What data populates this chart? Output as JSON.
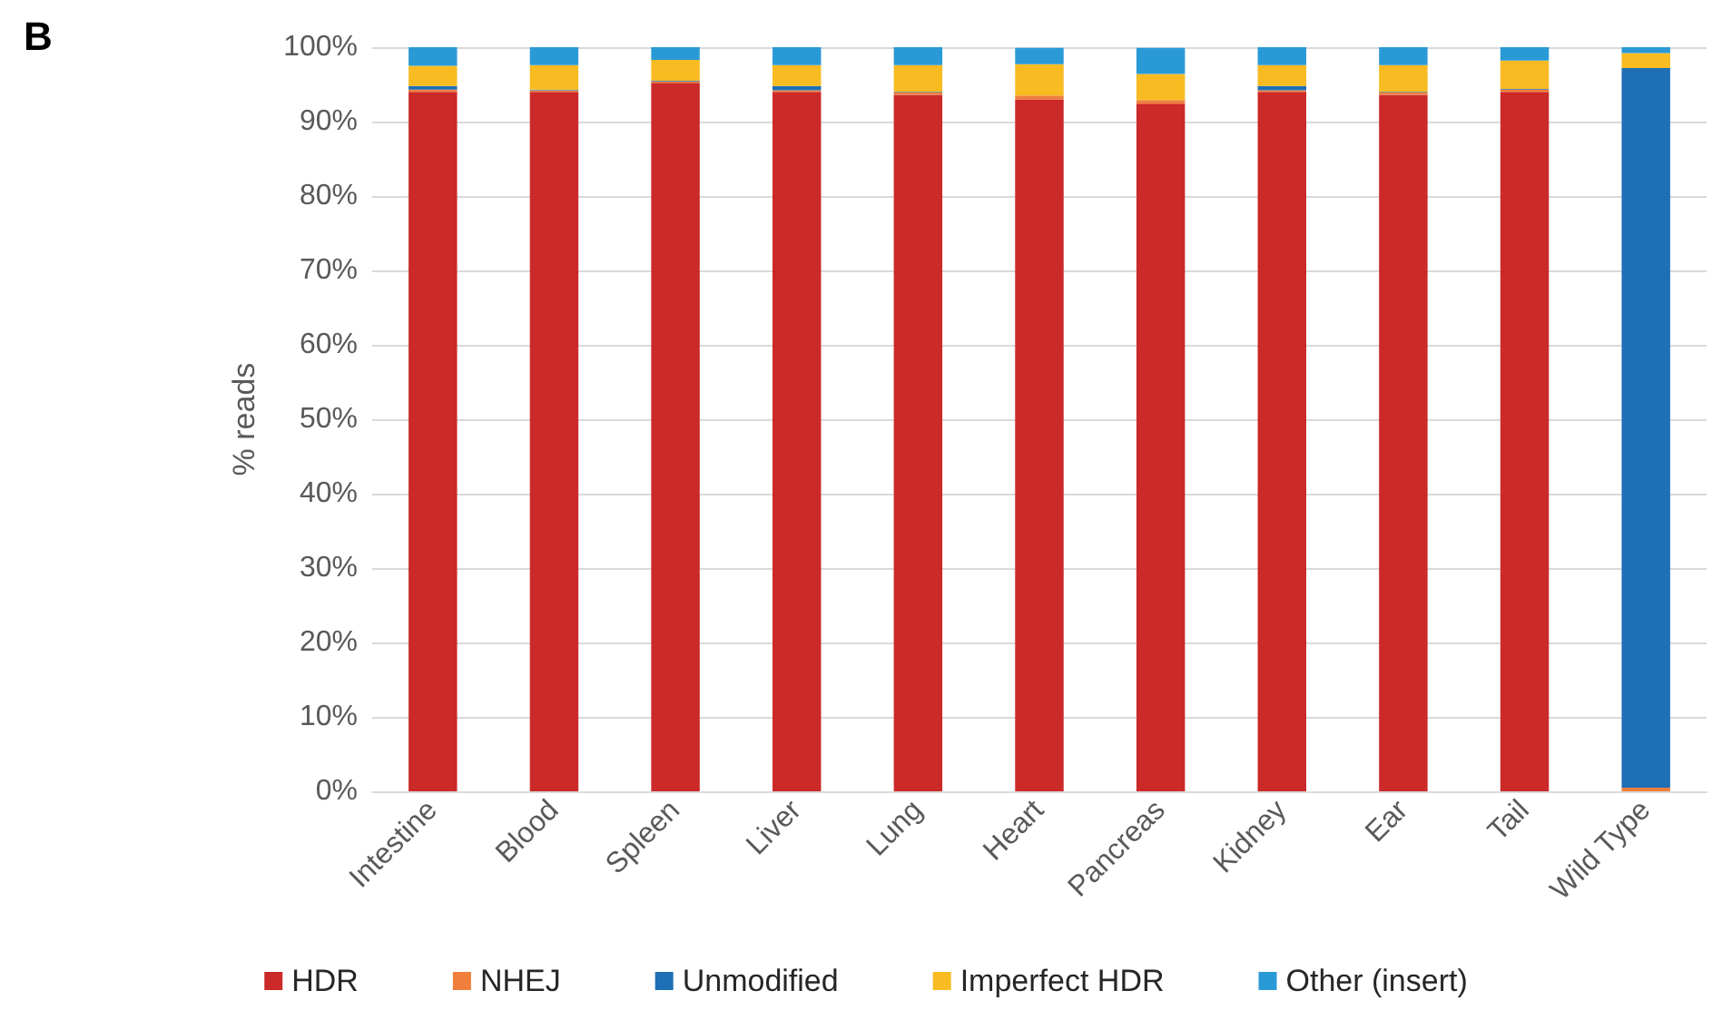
{
  "chart_data": {
    "type": "bar",
    "title": "B",
    "ylabel": "% reads",
    "stacked": true,
    "categories": [
      "Intestine",
      "Blood",
      "Spleen",
      "Liver",
      "Lung",
      "Heart",
      "Pancreas",
      "Kidney",
      "Ear",
      "Tail",
      "Wild Type"
    ],
    "series": [
      {
        "name": "HDR",
        "color": "#cc2929",
        "values": [
          94,
          94,
          95.2,
          94,
          93.6,
          93,
          92.4,
          94,
          93.6,
          94,
          0
        ]
      },
      {
        "name": "NHEJ",
        "color": "#f07f3c",
        "values": [
          0.3,
          0.2,
          0.2,
          0.2,
          0.3,
          0.5,
          0.5,
          0.2,
          0.3,
          0.3,
          0.5
        ]
      },
      {
        "name": "Unmodified",
        "color": "#1f6fb5",
        "values": [
          0.5,
          0.1,
          0.1,
          0.6,
          0.1,
          null,
          null,
          0.6,
          0.1,
          0.1,
          96.7
        ]
      },
      {
        "name": "Imperfect HDR",
        "color": "#f8bb22",
        "values": [
          2.7,
          3.3,
          2.8,
          2.8,
          3.6,
          4.2,
          3.5,
          2.8,
          3.6,
          3.8,
          2.0
        ]
      },
      {
        "name": "Other (insert)",
        "color": "#2a9ad6",
        "values": [
          2.5,
          2.4,
          1.7,
          2.4,
          2.4,
          2.2,
          3.5,
          2.4,
          2.4,
          1.8,
          0.8
        ]
      }
    ],
    "ylim": [
      0,
      100
    ],
    "yticks": [
      {
        "value": 0,
        "label": "0%"
      },
      {
        "value": 10,
        "label": "10%"
      },
      {
        "value": 20,
        "label": "20%"
      },
      {
        "value": 30,
        "label": "30%"
      },
      {
        "value": 40,
        "label": "40%"
      },
      {
        "value": 50,
        "label": "50%"
      },
      {
        "value": 60,
        "label": "60%"
      },
      {
        "value": 70,
        "label": "70%"
      },
      {
        "value": 80,
        "label": "80%"
      },
      {
        "value": 90,
        "label": "90%"
      },
      {
        "value": 100,
        "label": "100%"
      }
    ],
    "grid": "y",
    "legend": "bottom"
  }
}
